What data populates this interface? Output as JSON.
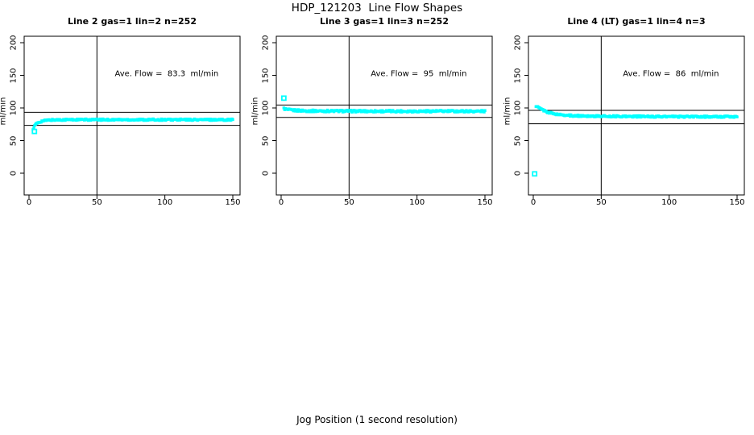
{
  "figure": {
    "title": "HDP_121203  Line Flow Shapes",
    "xlabel": "Jog Position (1 second resolution)",
    "background_color": "#FFFFFF",
    "marker_color": "#00FFFF",
    "axis_color": "#000000"
  },
  "chart_data": [
    {
      "type": "scatter",
      "title": "Line 2 gas=1 lin=2 n=252",
      "annotation": "Ave. Flow =  83.3  ml/min",
      "ave_flow_ml_min": 83.3,
      "n_label": 252,
      "ylabel": "ml/min",
      "xticks": [
        0,
        50,
        100,
        150
      ],
      "yticks": [
        0,
        50,
        100,
        150,
        200
      ],
      "xlim": [
        0,
        150
      ],
      "ylim": [
        -30,
        210
      ],
      "grid": false,
      "ref_hlines": [
        93.3,
        73.3
      ],
      "ref_vline": 50,
      "marker_color": "#00FFFF",
      "outlier_points": [
        [
          4,
          64
        ]
      ],
      "series_profile": [
        [
          3,
          68
        ],
        [
          4,
          72
        ],
        [
          5,
          75
        ],
        [
          7,
          78
        ],
        [
          10,
          80
        ],
        [
          15,
          81.5
        ],
        [
          25,
          82
        ],
        [
          150,
          82
        ]
      ],
      "series_band_halfwidth": 1.2,
      "series_point_count": 250
    },
    {
      "type": "scatter",
      "title": "Line 3 gas=1 lin=3 n=252",
      "annotation": "Ave. Flow =  95  ml/min",
      "ave_flow_ml_min": 95,
      "n_label": 252,
      "ylabel": "ml/min",
      "xticks": [
        0,
        50,
        100,
        150
      ],
      "yticks": [
        0,
        50,
        100,
        150,
        200
      ],
      "xlim": [
        0,
        150
      ],
      "ylim": [
        -30,
        210
      ],
      "grid": false,
      "ref_hlines": [
        104.5,
        85.5
      ],
      "ref_vline": 50,
      "marker_color": "#00FFFF",
      "outlier_points": [
        [
          2,
          115
        ]
      ],
      "series_profile": [
        [
          2,
          99
        ],
        [
          4,
          97.5
        ],
        [
          8,
          96.5
        ],
        [
          20,
          95.5
        ],
        [
          60,
          95
        ],
        [
          150,
          95
        ]
      ],
      "series_band_halfwidth": 1.5,
      "series_point_count": 250
    },
    {
      "type": "scatter",
      "title": "Line 4 (LT) gas=1 lin=4 n=3",
      "annotation": "Ave. Flow =  86  ml/min",
      "ave_flow_ml_min": 86,
      "n_label": 3,
      "ylabel": "ml/min",
      "xticks": [
        0,
        50,
        100,
        150
      ],
      "yticks": [
        0,
        50,
        100,
        150,
        200
      ],
      "xlim": [
        0,
        150
      ],
      "ylim": [
        -30,
        210
      ],
      "grid": false,
      "ref_hlines": [
        96.3,
        75.7
      ],
      "ref_vline": 50,
      "marker_color": "#00FFFF",
      "outlier_points": [
        [
          1,
          -1
        ]
      ],
      "series_profile": [
        [
          2,
          103
        ],
        [
          5,
          99
        ],
        [
          10,
          94
        ],
        [
          15,
          91
        ],
        [
          20,
          89.5
        ],
        [
          30,
          88
        ],
        [
          50,
          87.3
        ],
        [
          100,
          86.6
        ],
        [
          150,
          86.5
        ]
      ],
      "series_band_halfwidth": 1.2,
      "series_point_count": 260
    }
  ]
}
